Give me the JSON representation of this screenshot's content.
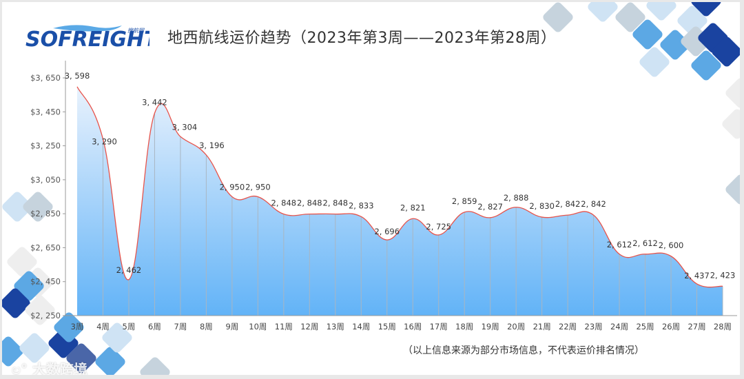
{
  "header": {
    "logo_text": "SOFREIGHT",
    "logo_sub": "搜航网",
    "title": "地西航线运价趋势（2023年第3周——2023年第28周）"
  },
  "footer": {
    "note": "（以上信息来源为部分市场信息，不代表运价排名情况）",
    "watermark": "大数跨境"
  },
  "colors": {
    "line": "#e8534a",
    "fill_top": "#e6f0fd",
    "fill_bottom": "#66b6f8",
    "axis": "#999999",
    "deco_dark": "#1a43a0",
    "deco_mid": "#5ca8e4",
    "deco_light": "#cfe3f4",
    "deco_gray": "#c6d3dd"
  },
  "chart_data": {
    "type": "area",
    "title": "地西航线运价趋势（2023年第3周——2023年第28周）",
    "xlabel": "",
    "ylabel": "",
    "categories": [
      "3周",
      "4周",
      "5周",
      "6周",
      "7周",
      "8周",
      "9周",
      "10周",
      "11周",
      "12周",
      "13周",
      "14周",
      "15周",
      "16周",
      "17周",
      "18周",
      "19周",
      "20周",
      "21周",
      "22周",
      "23周",
      "24周",
      "25周",
      "26周",
      "27周",
      "28周"
    ],
    "values": [
      3598,
      3290,
      2462,
      3442,
      3304,
      3196,
      2950,
      2950,
      2848,
      2848,
      2848,
      2833,
      2696,
      2821,
      2725,
      2859,
      2827,
      2888,
      2830,
      2842,
      2842,
      2612,
      2612,
      2600,
      2437,
      2423
    ],
    "data_labels": [
      "3, 598",
      "3, 290",
      "2, 462",
      "3, 442",
      "3, 304",
      "3, 196",
      "2, 950",
      "2, 950",
      "2, 848",
      "2, 848",
      "2, 848",
      "2, 833",
      "2, 696",
      "2, 821",
      "2, 725",
      "2, 859",
      "2, 827",
      "2, 888",
      "2, 830",
      "2, 842",
      "2, 842",
      "2, 612",
      "2, 612",
      "2, 600",
      "2, 437",
      "2, 423"
    ],
    "yticks": [
      2250,
      2450,
      2650,
      2850,
      3050,
      3250,
      3450,
      3650
    ],
    "ytick_labels": [
      "$2, 250",
      "$2, 450",
      "$2, 650",
      "$2, 850",
      "$3, 050",
      "$3, 250",
      "$3, 450",
      "$3, 650"
    ],
    "ylim": [
      2250,
      3650
    ],
    "grid": false,
    "legend": "none",
    "smooth": true
  }
}
